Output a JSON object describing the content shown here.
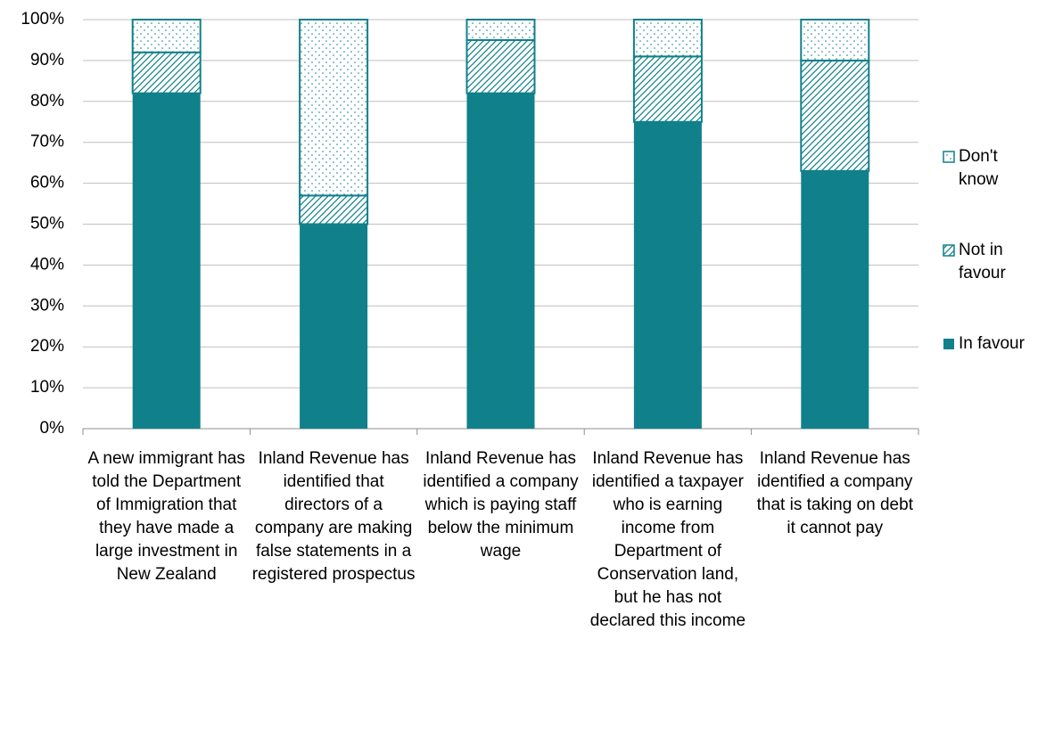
{
  "chart_data": {
    "type": "stacked_bar",
    "categories": [
      "A new immigrant has told the Department of Immigration that they have made a large investment in New Zealand",
      "Inland Revenue has identified that directors of a company are making false statements in a registered prospectus",
      "Inland Revenue has identified a company which is paying staff below the minimum wage",
      "Inland Revenue has identified a taxpayer who is earning income from Department of Conservation land, but he has not declared this income",
      "Inland Revenue has identified a company that is taking on debt it cannot pay"
    ],
    "series": [
      {
        "name": "In favour",
        "color": "#10808b",
        "pattern": "solid",
        "values": [
          82,
          50,
          82,
          75,
          63
        ]
      },
      {
        "name": "Not in favour",
        "color": "#10808b",
        "pattern": "hatch",
        "values": [
          10,
          7,
          13,
          16,
          27
        ]
      },
      {
        "name": "Don't know",
        "color": "#10808b",
        "pattern": "dots",
        "values": [
          8,
          43,
          5,
          9,
          10
        ]
      }
    ],
    "ylim": [
      0,
      100
    ],
    "yticks": [
      {
        "value": 0,
        "label": "0%"
      },
      {
        "value": 10,
        "label": "10%"
      },
      {
        "value": 20,
        "label": "20%"
      },
      {
        "value": 30,
        "label": "30%"
      },
      {
        "value": 40,
        "label": "40%"
      },
      {
        "value": 50,
        "label": "50%"
      },
      {
        "value": 60,
        "label": "60%"
      },
      {
        "value": 70,
        "label": "70%"
      },
      {
        "value": 80,
        "label": "80%"
      },
      {
        "value": 90,
        "label": "90%"
      },
      {
        "value": 100,
        "label": "100%"
      }
    ],
    "grid": true,
    "legend": "right"
  }
}
